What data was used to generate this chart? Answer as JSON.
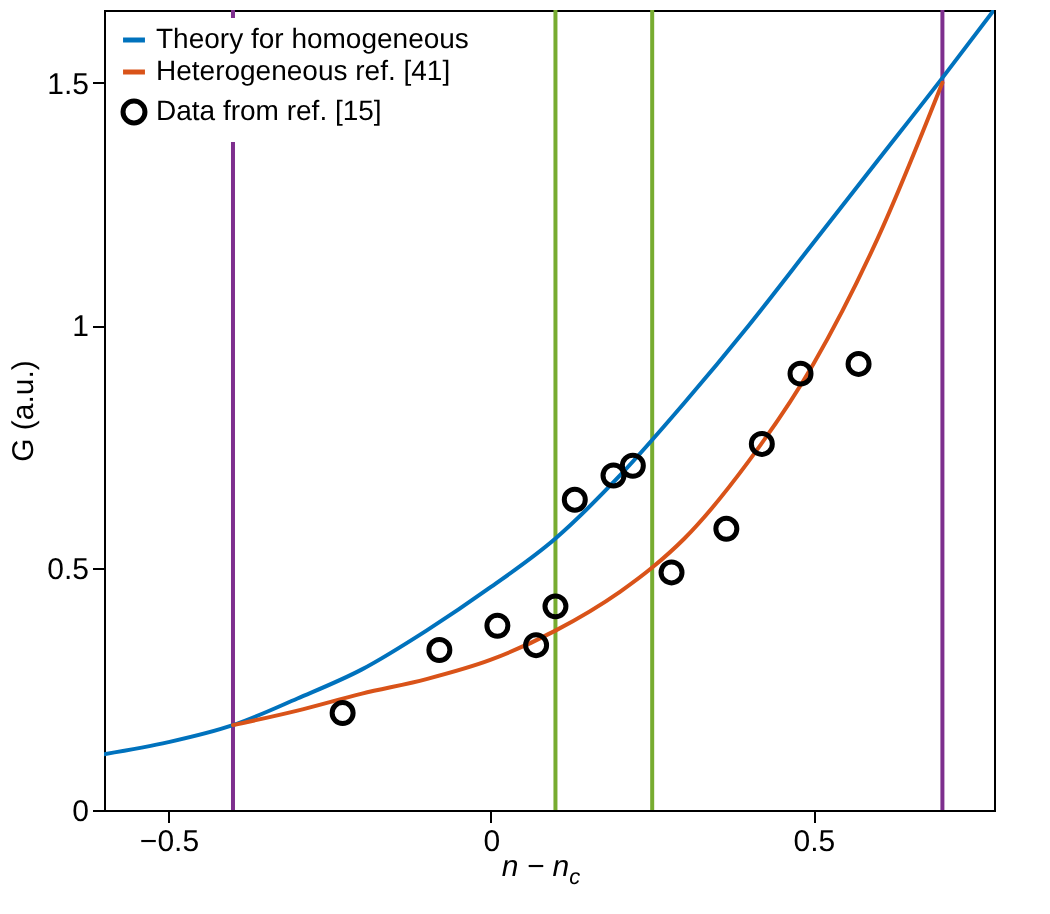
{
  "chart_data": {
    "type": "line",
    "xlabel": "n − n$_{c}$",
    "ylabel": "G (a.u.)",
    "xlim": [
      -0.6,
      0.78
    ],
    "ylim": [
      0,
      1.65
    ],
    "xticks": [
      -0.5,
      {
        "value": 0,
        "label": "0"
      },
      0.5
    ],
    "yticks": [
      {
        "value": 0,
        "label": "0"
      },
      0.5,
      {
        "value": 1,
        "label": "1"
      },
      1.5
    ],
    "grid": false,
    "legend": "top left",
    "series": [
      {
        "name": "Theory for homogeneous",
        "type": "line",
        "color": "#0072bd",
        "x": [
          -0.6,
          -0.5,
          -0.4,
          -0.3,
          -0.2,
          -0.1,
          0,
          0.1,
          0.2,
          0.3,
          0.4,
          0.5,
          0.6,
          0.7,
          0.78
        ],
        "values": [
          0.115,
          0.14,
          0.175,
          0.23,
          0.29,
          0.37,
          0.46,
          0.56,
          0.69,
          0.84,
          1.0,
          1.17,
          1.34,
          1.51,
          1.65
        ]
      },
      {
        "name": "Heterogeneous ref. [41]",
        "type": "line",
        "color": "#d95319",
        "x": [
          -0.4,
          -0.3,
          -0.2,
          -0.1,
          0,
          0.1,
          0.2,
          0.25,
          0.3,
          0.4,
          0.5,
          0.6,
          0.7
        ],
        "values": [
          0.175,
          0.205,
          0.24,
          0.27,
          0.31,
          0.37,
          0.45,
          0.5,
          0.56,
          0.72,
          0.92,
          1.18,
          1.5
        ]
      },
      {
        "name": "Data from ref. [15]",
        "type": "scatter",
        "marker": "circle",
        "color": "#000000",
        "x": [
          -0.23,
          -0.08,
          0.01,
          0.07,
          0.1,
          0.13,
          0.19,
          0.22,
          0.28,
          0.365,
          0.42,
          0.48,
          0.57
        ],
        "values": [
          0.2,
          0.33,
          0.38,
          0.34,
          0.42,
          0.64,
          0.69,
          0.71,
          0.49,
          0.58,
          0.755,
          0.9,
          0.92
        ]
      }
    ],
    "ref_lines": [
      {
        "axis": "x",
        "value": -0.4,
        "color": "#7e2f8e"
      },
      {
        "axis": "x",
        "value": 0.7,
        "color": "#7e2f8e"
      },
      {
        "axis": "x",
        "value": 0.1,
        "color": "#77ac30"
      },
      {
        "axis": "x",
        "value": 0.25,
        "color": "#77ac30"
      }
    ]
  }
}
